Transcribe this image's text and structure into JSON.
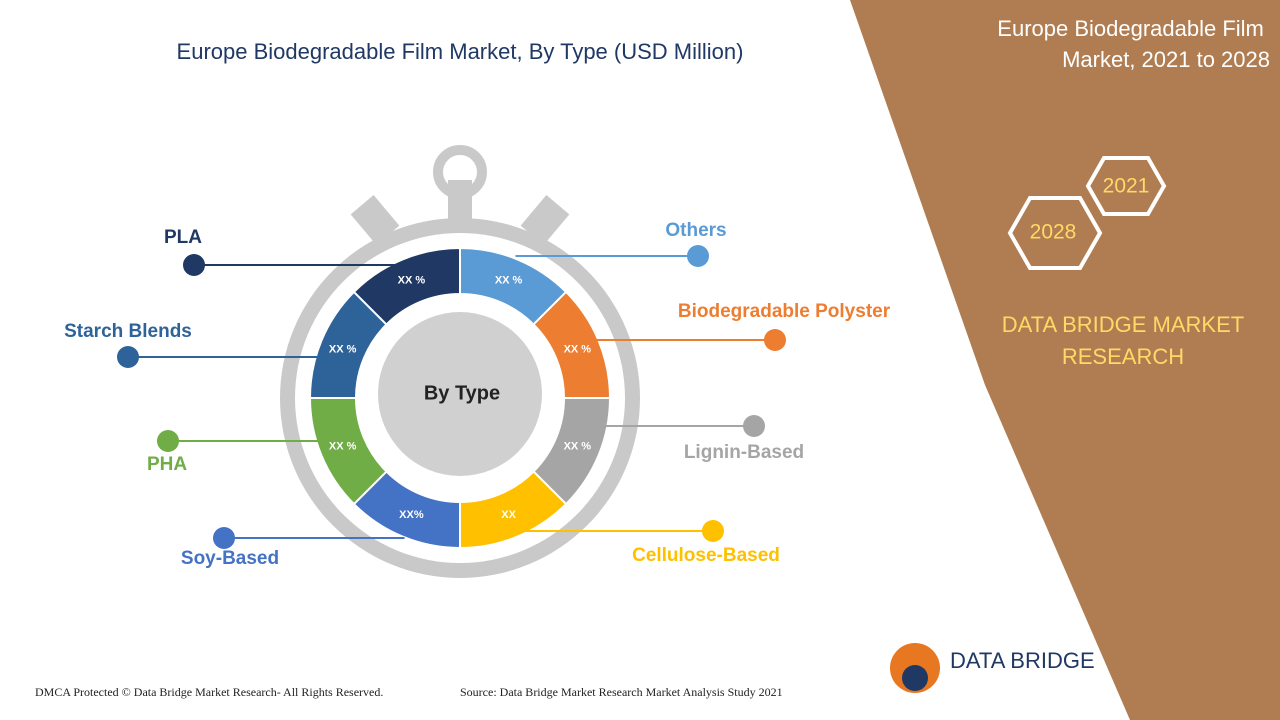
{
  "header": {
    "title": "Europe Biodegradable Film Market, By Type (USD Million)"
  },
  "side_panel": {
    "title": "Europe Biodegradable Film Market, 2021 to 2028",
    "years": [
      "2021",
      "2028"
    ],
    "brand": "DATA BRIDGE MARKET RESEARCH"
  },
  "center": {
    "label": "By Type"
  },
  "segments": [
    {
      "name": "Others",
      "value_label": "XX %",
      "color": "#5b9bd5"
    },
    {
      "name": "Biodegradable Polyster",
      "value_label": "XX %",
      "color": "#ed7d31"
    },
    {
      "name": "Lignin-Based",
      "value_label": "XX %",
      "color": "#a5a5a5"
    },
    {
      "name": "Cellulose-Based",
      "value_label": "XX",
      "color": "#ffc000"
    },
    {
      "name": "Soy-Based",
      "value_label": "XX%",
      "color": "#4472c4"
    },
    {
      "name": "PHA",
      "value_label": "XX %",
      "color": "#70ad47"
    },
    {
      "name": "Starch Blends",
      "value_label": "XX %",
      "color": "#2e6399"
    },
    {
      "name": "PLA",
      "value_label": "XX %",
      "color": "#203864"
    }
  ],
  "footer": {
    "copyright": "DMCA Protected © Data Bridge Market Research- All Rights Reserved.",
    "source": "Source: Data Bridge Market Research Market Analysis Study 2021",
    "logo": "DATA BRIDGE"
  }
}
